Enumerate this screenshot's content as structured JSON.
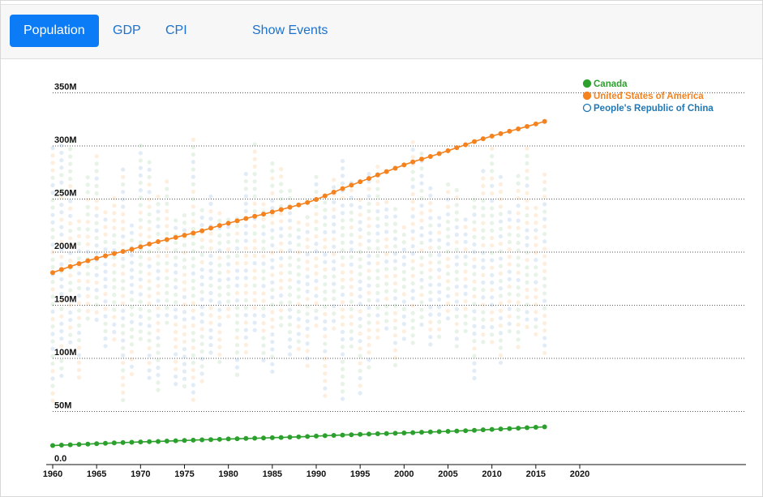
{
  "toolbar": {
    "tabs": [
      {
        "label": "Population",
        "active": true
      },
      {
        "label": "GDP",
        "active": false
      },
      {
        "label": "CPI",
        "active": false
      }
    ],
    "events_label": "Show Events"
  },
  "colors": {
    "canada": "#2ca02c",
    "usa": "#f4821f",
    "china": "#1f77b4",
    "background_canada": "#e6f3e6",
    "background_usa": "#fdeedd",
    "background_china": "#e1ecf7",
    "tab_active": "#0b7cf5",
    "link": "#1b72cf"
  },
  "chart_data": {
    "type": "scatter",
    "x_ticks": [
      1960,
      1965,
      1970,
      1975,
      1980,
      1985,
      1990,
      1995,
      2000,
      2005,
      2010,
      2015,
      2020
    ],
    "y_ticks": [
      {
        "value": 0,
        "label": "0.0"
      },
      {
        "value": 50000000,
        "label": "50M"
      },
      {
        "value": 100000000,
        "label": "100M"
      },
      {
        "value": 150000000,
        "label": "150M"
      },
      {
        "value": 200000000,
        "label": "200M"
      },
      {
        "value": 250000000,
        "label": "250M"
      },
      {
        "value": 300000000,
        "label": "300M"
      },
      {
        "value": 350000000,
        "label": "350M"
      }
    ],
    "xlim": [
      1960,
      2020
    ],
    "ylim": [
      0,
      355000000
    ],
    "grid": "horizontal dotted",
    "legend_position": "top-right",
    "legend": [
      {
        "name": "Canada",
        "style": "filled",
        "color_key": "canada"
      },
      {
        "name": "United States of America",
        "style": "filled",
        "color_key": "usa"
      },
      {
        "name": "People's Republic of China",
        "style": "hollow",
        "color_key": "china"
      }
    ],
    "series": [
      {
        "name": "United States of America",
        "color_key": "usa",
        "x_start": 1960,
        "x_end": 2016,
        "values": [
          180700000,
          183700000,
          186500000,
          189200000,
          191900000,
          194300000,
          196600000,
          198700000,
          200700000,
          202700000,
          205100000,
          207700000,
          209900000,
          211900000,
          213900000,
          216000000,
          218000000,
          220200000,
          222600000,
          225100000,
          227200000,
          229500000,
          231700000,
          233800000,
          235800000,
          237900000,
          240100000,
          242300000,
          244500000,
          246800000,
          249600000,
          253000000,
          256500000,
          259900000,
          263100000,
          266300000,
          269400000,
          272700000,
          275900000,
          279000000,
          282200000,
          285000000,
          287600000,
          290100000,
          292800000,
          295500000,
          298400000,
          301200000,
          304100000,
          306800000,
          309300000,
          311600000,
          313900000,
          316100000,
          318400000,
          320700000,
          323100000
        ]
      },
      {
        "name": "Canada",
        "color_key": "canada",
        "x_start": 1960,
        "x_end": 2016,
        "values": [
          17900000,
          18300000,
          18600000,
          19000000,
          19300000,
          19700000,
          20000000,
          20400000,
          20700000,
          21000000,
          21300000,
          21600000,
          21800000,
          22100000,
          22400000,
          22700000,
          23000000,
          23300000,
          23500000,
          23800000,
          24100000,
          24300000,
          24600000,
          24800000,
          25000000,
          25300000,
          25500000,
          25800000,
          26100000,
          26400000,
          26800000,
          27200000,
          27500000,
          27800000,
          28100000,
          28400000,
          28700000,
          29000000,
          29200000,
          29500000,
          29800000,
          30100000,
          30400000,
          30700000,
          31000000,
          31300000,
          31600000,
          31900000,
          32300000,
          32700000,
          33100000,
          33500000,
          33900000,
          34300000,
          34700000,
          35100000,
          35500000
        ]
      }
    ]
  }
}
